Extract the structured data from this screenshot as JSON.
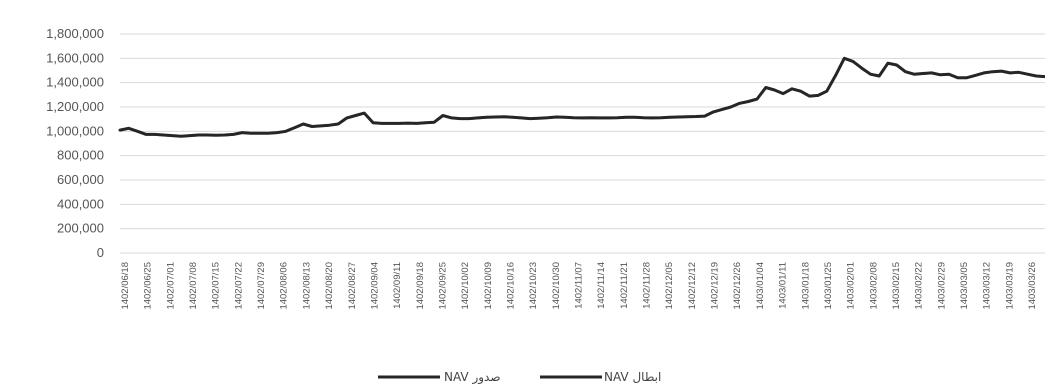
{
  "chart_data": {
    "type": "line",
    "title": "",
    "xlabel": "",
    "ylabel": "",
    "ylim": [
      0,
      1800000
    ],
    "grid": true,
    "legend_placement": "bottom",
    "y_ticks": [
      "0",
      "200,000",
      "400,000",
      "600,000",
      "800,000",
      "1,000,000",
      "1,200,000",
      "1,400,000",
      "1,600,000",
      "1,800,000"
    ],
    "x_ticks": [
      "1402/06/18",
      "1402/06/25",
      "1402/07/01",
      "1402/07/08",
      "1402/07/15",
      "1402/07/22",
      "1402/07/29",
      "1402/08/06",
      "1402/08/13",
      "1402/08/20",
      "1402/08/27",
      "1402/09/04",
      "1402/09/11",
      "1402/09/18",
      "1402/09/25",
      "1402/10/02",
      "1402/10/09",
      "1402/10/16",
      "1402/10/23",
      "1402/10/30",
      "1402/11/07",
      "1402/11/14",
      "1402/11/21",
      "1402/11/28",
      "1402/12/05",
      "1402/12/12",
      "1402/12/19",
      "1402/12/26",
      "1403/01/04",
      "1403/01/11",
      "1403/01/18",
      "1403/01/25",
      "1403/02/01",
      "1403/02/08",
      "1403/02/15",
      "1403/02/22",
      "1403/02/29",
      "1403/03/05",
      "1403/03/12",
      "1403/03/19",
      "1403/03/26"
    ],
    "series": [
      {
        "name": "NAV صدور",
        "color": "#262626",
        "values": [
          1010000,
          1025000,
          1000000,
          975000,
          975000,
          970000,
          965000,
          960000,
          965000,
          970000,
          970000,
          968000,
          970000,
          975000,
          990000,
          985000,
          985000,
          985000,
          990000,
          1000000,
          1030000,
          1060000,
          1040000,
          1045000,
          1050000,
          1060000,
          1110000,
          1130000,
          1150000,
          1070000,
          1065000,
          1065000,
          1065000,
          1068000,
          1065000,
          1070000,
          1075000,
          1130000,
          1110000,
          1105000,
          1105000,
          1110000,
          1115000,
          1118000,
          1120000,
          1115000,
          1110000,
          1105000,
          1108000,
          1112000,
          1118000,
          1115000,
          1112000,
          1110000,
          1112000,
          1110000,
          1110000,
          1112000,
          1115000,
          1115000,
          1112000,
          1110000,
          1112000,
          1115000,
          1118000,
          1120000,
          1122000,
          1125000,
          1160000,
          1180000,
          1200000,
          1230000,
          1245000,
          1265000,
          1360000,
          1340000,
          1310000,
          1350000,
          1330000,
          1290000,
          1295000,
          1330000,
          1460000,
          1600000,
          1575000,
          1520000,
          1470000,
          1455000,
          1560000,
          1545000,
          1490000,
          1470000,
          1475000,
          1480000,
          1465000,
          1470000,
          1440000,
          1440000,
          1460000,
          1480000,
          1490000,
          1495000,
          1480000,
          1485000,
          1470000,
          1455000,
          1450000
        ]
      },
      {
        "name": "NAV ابطال",
        "color": "#262626",
        "values": [
          1005000,
          1020000,
          995000,
          970000,
          970000,
          965000,
          960000,
          955000,
          960000,
          965000,
          965000,
          963000,
          965000,
          970000,
          985000,
          980000,
          980000,
          980000,
          985000,
          995000,
          1025000,
          1055000,
          1035000,
          1040000,
          1045000,
          1055000,
          1105000,
          1125000,
          1145000,
          1065000,
          1060000,
          1060000,
          1060000,
          1063000,
          1060000,
          1065000,
          1070000,
          1125000,
          1105000,
          1100000,
          1100000,
          1105000,
          1110000,
          1113000,
          1115000,
          1110000,
          1105000,
          1100000,
          1103000,
          1107000,
          1113000,
          1110000,
          1107000,
          1105000,
          1107000,
          1105000,
          1105000,
          1107000,
          1110000,
          1110000,
          1107000,
          1105000,
          1107000,
          1110000,
          1113000,
          1115000,
          1117000,
          1120000,
          1155000,
          1175000,
          1195000,
          1225000,
          1240000,
          1260000,
          1355000,
          1335000,
          1305000,
          1345000,
          1325000,
          1285000,
          1290000,
          1325000,
          1455000,
          1595000,
          1570000,
          1515000,
          1465000,
          1450000,
          1555000,
          1540000,
          1485000,
          1465000,
          1470000,
          1475000,
          1460000,
          1465000,
          1435000,
          1435000,
          1455000,
          1475000,
          1485000,
          1490000,
          1475000,
          1480000,
          1465000,
          1450000,
          1445000
        ]
      }
    ]
  }
}
